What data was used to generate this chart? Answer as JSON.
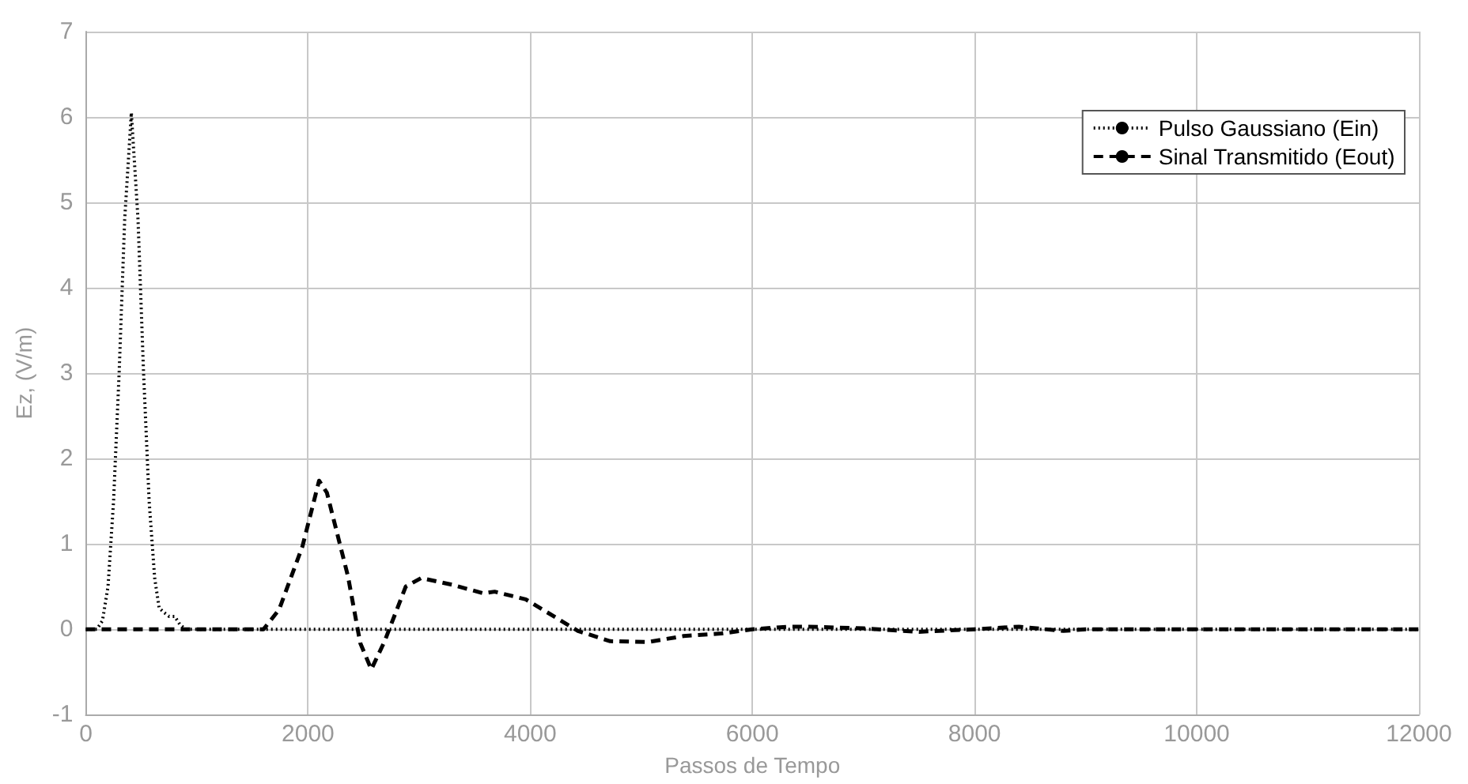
{
  "chart_data": {
    "type": "line",
    "xlabel": "Passos de Tempo",
    "ylabel": "Ez, (V/m)",
    "xlim": [
      0,
      12000
    ],
    "xticks": [
      0,
      2000,
      4000,
      6000,
      8000,
      10000,
      12000
    ],
    "ylim": [
      -1,
      7
    ],
    "yticks": [
      -1,
      0,
      1,
      2,
      3,
      4,
      5,
      6,
      7
    ],
    "grid": true,
    "legend": "top right",
    "marker": "none",
    "series": [
      {
        "name": "Pulso Gaussiano (Ein)",
        "color": "#000000",
        "line_style": "dotted",
        "x": [
          0,
          100,
          150,
          200,
          250,
          300,
          350,
          410,
          470,
          520,
          570,
          620,
          660,
          700,
          750,
          800,
          850,
          900,
          2000,
          4000,
          6000,
          8000,
          10000,
          12000
        ],
        "values": [
          0,
          0,
          0.1,
          0.5,
          1.5,
          3,
          4.8,
          6.05,
          4.8,
          3,
          1.5,
          0.6,
          0.25,
          0.2,
          0.15,
          0.15,
          0.05,
          0,
          0,
          0,
          0,
          0,
          0,
          0
        ]
      },
      {
        "name": "Sinal Transmitido (Eout)",
        "color": "#000000",
        "line_style": "dashed",
        "x": [
          0,
          1000,
          1600,
          1740,
          1950,
          2100,
          2170,
          2360,
          2470,
          2570,
          2690,
          2880,
          3020,
          3300,
          3580,
          3680,
          3960,
          4430,
          4720,
          5060,
          5380,
          5720,
          6000,
          6330,
          6500,
          7000,
          7500,
          8000,
          8400,
          8800,
          9000,
          10000,
          11000,
          12000
        ],
        "values": [
          0,
          0,
          0,
          0.23,
          0.97,
          1.74,
          1.6,
          0.62,
          -0.16,
          -0.47,
          -0.14,
          0.5,
          0.6,
          0.52,
          0.42,
          0.44,
          0.35,
          -0.02,
          -0.14,
          -0.15,
          -0.08,
          -0.05,
          0,
          0.03,
          0.03,
          0.01,
          -0.03,
          0,
          0.03,
          -0.02,
          0,
          0,
          0,
          0
        ]
      }
    ]
  }
}
